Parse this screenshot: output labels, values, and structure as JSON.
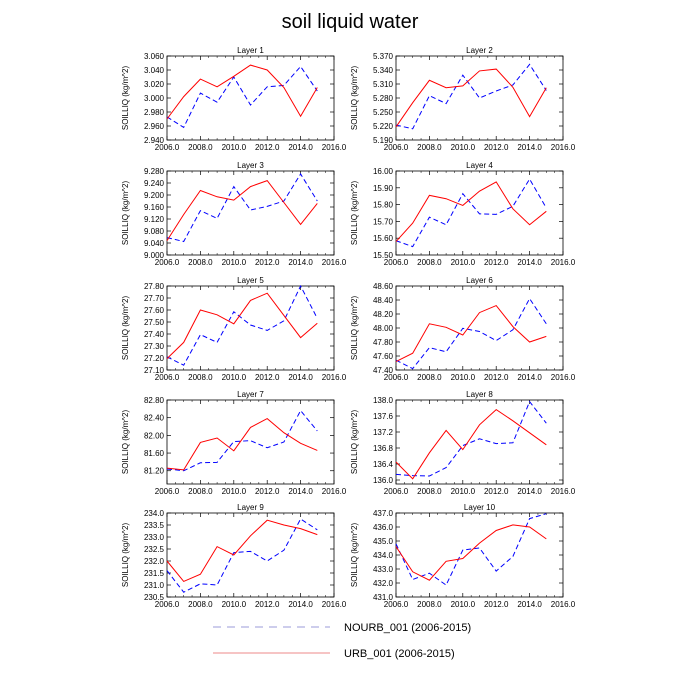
{
  "figure": {
    "title": "soil liquid water",
    "legend": [
      {
        "name": "NOURB_001 (2006-2015)",
        "color": "#0000ff",
        "style": "dashed",
        "display_color": "#9b9bd8"
      },
      {
        "name": "URB_001 (2006-2015)",
        "color": "#ff0000",
        "style": "solid",
        "display_color": "#ee8a8a"
      }
    ]
  },
  "chart_data": [
    {
      "type": "line",
      "title": "Layer 1",
      "xlabel": "",
      "ylabel": "SOILLIQ  (kg/m^2)",
      "xlim": [
        2006,
        2016
      ],
      "ylim": [
        2.94,
        3.06
      ],
      "xticks": [
        "2006.0",
        "2008.0",
        "2010.0",
        "2012.0",
        "2014.0",
        "2016.0"
      ],
      "yticks": [
        "2.940",
        "2.960",
        "2.980",
        "3.000",
        "3.020",
        "3.040",
        "3.060"
      ],
      "x": [
        2006,
        2007,
        2008,
        2009,
        2010,
        2011,
        2012,
        2013,
        2014,
        2015
      ],
      "series": [
        {
          "name": "NOURB_001 (2006-2015)",
          "values": [
            2.973,
            2.958,
            3.007,
            2.994,
            3.03,
            2.99,
            3.016,
            3.018,
            3.045,
            3.01
          ]
        },
        {
          "name": "URB_001 (2006-2015)",
          "values": [
            2.97,
            3.002,
            3.027,
            3.016,
            3.031,
            3.047,
            3.04,
            3.015,
            2.974,
            3.015
          ]
        }
      ]
    },
    {
      "type": "line",
      "title": "Layer 2",
      "xlabel": "",
      "ylabel": "SOILLIQ  (kg/m^2)",
      "xlim": [
        2006,
        2016
      ],
      "ylim": [
        5.19,
        5.37
      ],
      "xticks": [
        "2006.0",
        "2008.0",
        "2010.0",
        "2012.0",
        "2014.0",
        "2016.0"
      ],
      "yticks": [
        "5.190",
        "5.220",
        "5.250",
        "5.280",
        "5.310",
        "5.340",
        "5.370"
      ],
      "x": [
        2006,
        2007,
        2008,
        2009,
        2010,
        2011,
        2012,
        2013,
        2014,
        2015
      ],
      "series": [
        {
          "name": "NOURB_001 (2006-2015)",
          "values": [
            5.222,
            5.214,
            5.285,
            5.268,
            5.329,
            5.28,
            5.295,
            5.308,
            5.352,
            5.296
          ]
        },
        {
          "name": "URB_001 (2006-2015)",
          "values": [
            5.218,
            5.27,
            5.318,
            5.302,
            5.306,
            5.338,
            5.342,
            5.303,
            5.24,
            5.302
          ]
        }
      ]
    },
    {
      "type": "line",
      "title": "Layer 3",
      "xlabel": "",
      "ylabel": "SOILLIQ  (kg/m^2)",
      "xlim": [
        2006,
        2016
      ],
      "ylim": [
        9.0,
        9.28
      ],
      "xticks": [
        "2006.0",
        "2008.0",
        "2010.0",
        "2012.0",
        "2014.0",
        "2016.0"
      ],
      "yticks": [
        "9.000",
        "9.040",
        "9.080",
        "9.120",
        "9.160",
        "9.200",
        "9.240",
        "9.280"
      ],
      "x": [
        2006,
        2007,
        2008,
        2009,
        2010,
        2011,
        2012,
        2013,
        2014,
        2015
      ],
      "series": [
        {
          "name": "NOURB_001 (2006-2015)",
          "values": [
            9.058,
            9.045,
            9.148,
            9.122,
            9.228,
            9.15,
            9.162,
            9.18,
            9.27,
            9.18
          ]
        },
        {
          "name": "URB_001 (2006-2015)",
          "values": [
            9.048,
            9.135,
            9.215,
            9.194,
            9.183,
            9.228,
            9.248,
            9.175,
            9.102,
            9.172
          ]
        }
      ]
    },
    {
      "type": "line",
      "title": "Layer 4",
      "xlabel": "",
      "ylabel": "SOILLIQ  (kg/m^2)",
      "xlim": [
        2006,
        2016
      ],
      "ylim": [
        15.5,
        16.0
      ],
      "xticks": [
        "2006.0",
        "2008.0",
        "2010.0",
        "2012.0",
        "2014.0",
        "2016.0"
      ],
      "yticks": [
        "15.50",
        "15.60",
        "15.70",
        "15.80",
        "15.90",
        "16.00"
      ],
      "x": [
        2006,
        2007,
        2008,
        2009,
        2010,
        2011,
        2012,
        2013,
        2014,
        2015
      ],
      "series": [
        {
          "name": "NOURB_001 (2006-2015)",
          "values": [
            15.585,
            15.55,
            15.725,
            15.68,
            15.865,
            15.745,
            15.742,
            15.79,
            15.952,
            15.78
          ]
        },
        {
          "name": "URB_001 (2006-2015)",
          "values": [
            15.58,
            15.69,
            15.855,
            15.835,
            15.795,
            15.88,
            15.935,
            15.775,
            15.68,
            15.76
          ]
        }
      ]
    },
    {
      "type": "line",
      "title": "Layer 5",
      "xlabel": "",
      "ylabel": "SOILLIQ  (kg/m^2)",
      "xlim": [
        2006,
        2016
      ],
      "ylim": [
        27.1,
        27.8
      ],
      "xticks": [
        "2006.0",
        "2008.0",
        "2010.0",
        "2012.0",
        "2014.0",
        "2016.0"
      ],
      "yticks": [
        "27.10",
        "27.20",
        "27.30",
        "27.40",
        "27.50",
        "27.60",
        "27.70",
        "27.80"
      ],
      "x": [
        2006,
        2007,
        2008,
        2009,
        2010,
        2011,
        2012,
        2013,
        2014,
        2015
      ],
      "series": [
        {
          "name": "NOURB_001 (2006-2015)",
          "values": [
            27.21,
            27.14,
            27.395,
            27.33,
            27.585,
            27.475,
            27.43,
            27.51,
            27.8,
            27.53
          ]
        },
        {
          "name": "URB_001 (2006-2015)",
          "values": [
            27.195,
            27.33,
            27.6,
            27.56,
            27.485,
            27.68,
            27.74,
            27.555,
            27.37,
            27.49
          ]
        }
      ]
    },
    {
      "type": "line",
      "title": "Layer 6",
      "xlabel": "",
      "ylabel": "SOILLIQ  (kg/m^2)",
      "xlim": [
        2006,
        2016
      ],
      "ylim": [
        47.4,
        48.6
      ],
      "xticks": [
        "2006.0",
        "2008.0",
        "2010.0",
        "2012.0",
        "2014.0",
        "2016.0"
      ],
      "yticks": [
        "47.40",
        "47.60",
        "47.80",
        "48.00",
        "48.20",
        "48.40",
        "48.60"
      ],
      "x": [
        2006,
        2007,
        2008,
        2009,
        2010,
        2011,
        2012,
        2013,
        2014,
        2015
      ],
      "series": [
        {
          "name": "NOURB_001 (2006-2015)",
          "values": [
            47.54,
            47.42,
            47.72,
            47.66,
            47.995,
            47.95,
            47.82,
            47.975,
            48.42,
            48.06
          ]
        },
        {
          "name": "URB_001 (2006-2015)",
          "values": [
            47.52,
            47.64,
            48.06,
            48.01,
            47.9,
            48.22,
            48.32,
            48.02,
            47.8,
            47.88
          ]
        }
      ]
    },
    {
      "type": "line",
      "title": "Layer 7",
      "xlabel": "",
      "ylabel": "SOILLIQ  (kg/m^2)",
      "xlim": [
        2006,
        2016
      ],
      "ylim": [
        80.9,
        82.8
      ],
      "xticks": [
        "2006.0",
        "2008.0",
        "2010.0",
        "2012.0",
        "2014.0",
        "2016.0"
      ],
      "yticks": [
        "81.20",
        "81.60",
        "82.00",
        "82.40",
        "82.80"
      ],
      "x": [
        2006,
        2007,
        2008,
        2009,
        2010,
        2011,
        2012,
        2013,
        2014,
        2015
      ],
      "series": [
        {
          "name": "NOURB_001 (2006-2015)",
          "values": [
            81.24,
            81.2,
            81.38,
            81.39,
            81.86,
            81.88,
            81.72,
            81.85,
            82.56,
            82.1
          ]
        },
        {
          "name": "URB_001 (2006-2015)",
          "values": [
            81.26,
            81.22,
            81.84,
            81.94,
            81.65,
            82.18,
            82.38,
            82.06,
            81.82,
            81.66
          ]
        }
      ]
    },
    {
      "type": "line",
      "title": "Layer 8",
      "xlabel": "",
      "ylabel": "SOILLIQ  (kg/m^2)",
      "xlim": [
        2006,
        2016
      ],
      "ylim": [
        135.9,
        138.0
      ],
      "xticks": [
        "2006.0",
        "2008.0",
        "2010.0",
        "2012.0",
        "2014.0",
        "2016.0"
      ],
      "yticks": [
        "136.0",
        "136.4",
        "136.8",
        "137.2",
        "137.6",
        "138.0"
      ],
      "x": [
        2006,
        2007,
        2008,
        2009,
        2010,
        2011,
        2012,
        2013,
        2014,
        2015
      ],
      "series": [
        {
          "name": "NOURB_001 (2006-2015)",
          "values": [
            136.14,
            136.11,
            136.1,
            136.31,
            136.86,
            137.03,
            136.91,
            136.93,
            137.96,
            137.42
          ]
        },
        {
          "name": "URB_001 (2006-2015)",
          "values": [
            136.45,
            136.03,
            136.68,
            137.24,
            136.76,
            137.38,
            137.76,
            137.48,
            137.18,
            136.88
          ]
        }
      ]
    },
    {
      "type": "line",
      "title": "Layer 9",
      "xlabel": "",
      "ylabel": "SOILLIQ  (kg/m^2)",
      "xlim": [
        2006,
        2016
      ],
      "ylim": [
        230.5,
        234.0
      ],
      "xticks": [
        "2006.0",
        "2008.0",
        "2010.0",
        "2012.0",
        "2014.0",
        "2016.0"
      ],
      "yticks": [
        "230.5",
        "231.0",
        "231.5",
        "232.0",
        "232.5",
        "233.0",
        "233.5",
        "234.0"
      ],
      "x": [
        2006,
        2007,
        2008,
        2009,
        2010,
        2011,
        2012,
        2013,
        2014,
        2015
      ],
      "series": [
        {
          "name": "NOURB_001 (2006-2015)",
          "values": [
            231.6,
            230.7,
            231.05,
            231.0,
            232.35,
            232.4,
            232.0,
            232.45,
            233.75,
            233.3
          ]
        },
        {
          "name": "URB_001 (2006-2015)",
          "values": [
            232.0,
            231.15,
            231.45,
            232.6,
            232.25,
            233.05,
            233.7,
            233.5,
            233.35,
            233.1
          ]
        }
      ]
    },
    {
      "type": "line",
      "title": "Layer 10",
      "xlabel": "",
      "ylabel": "SOILLIQ  (kg/m^2)",
      "xlim": [
        2006,
        2016
      ],
      "ylim": [
        431.0,
        437.0
      ],
      "xticks": [
        "2006.0",
        "2008.0",
        "2010.0",
        "2012.0",
        "2014.0",
        "2016.0"
      ],
      "yticks": [
        "431.0",
        "432.0",
        "433.0",
        "434.0",
        "435.0",
        "436.0",
        "437.0"
      ],
      "x": [
        2006,
        2007,
        2008,
        2009,
        2010,
        2011,
        2012,
        2013,
        2014,
        2015
      ],
      "series": [
        {
          "name": "NOURB_001 (2006-2015)",
          "values": [
            434.8,
            432.25,
            432.7,
            431.85,
            434.35,
            434.5,
            432.85,
            433.9,
            436.6,
            436.95
          ]
        },
        {
          "name": "URB_001 (2006-2015)",
          "values": [
            434.6,
            432.8,
            432.2,
            433.55,
            433.75,
            434.85,
            435.75,
            436.15,
            436.0,
            435.15
          ]
        }
      ]
    }
  ]
}
